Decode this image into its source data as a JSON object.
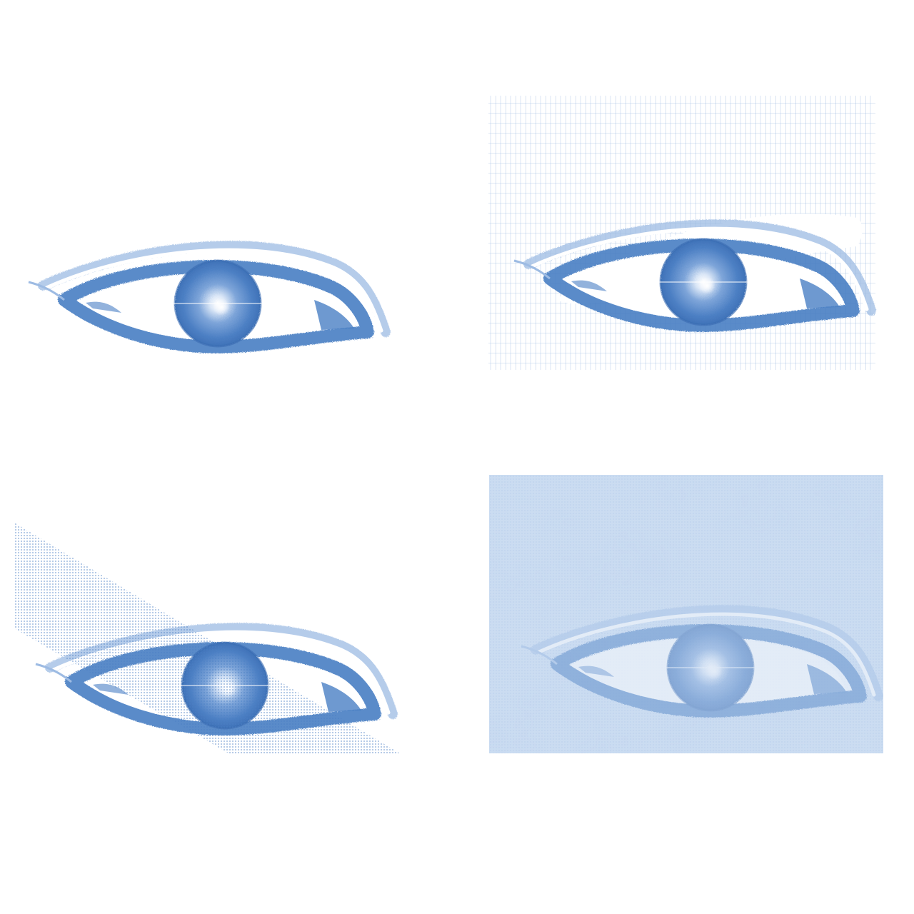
{
  "figure": {
    "panels": [
      {
        "id": "plain",
        "background": "none"
      },
      {
        "id": "grid",
        "background": "crosshatch-grid"
      },
      {
        "id": "diagonal",
        "background": "diagonal-halftone-band"
      },
      {
        "id": "textured",
        "background": "full-texture"
      }
    ]
  },
  "colors": {
    "ink": "#4a7fc4",
    "ink_dark": "#3a6cb3",
    "ink_light": "#9dbbe3",
    "paper": "#ffffff",
    "tint": "#c9dbf1"
  }
}
